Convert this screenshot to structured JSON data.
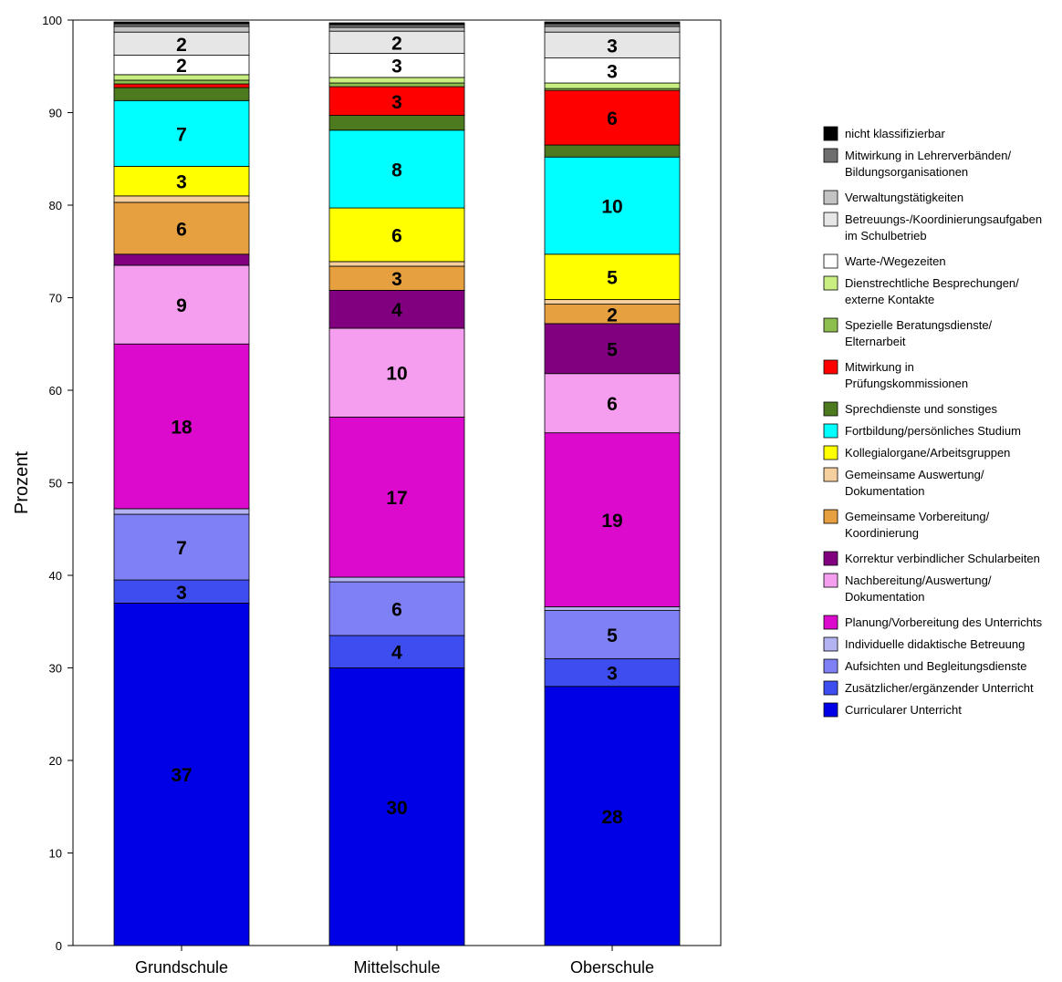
{
  "chart_data": {
    "type": "bar",
    "stacked": true,
    "title": "",
    "xlabel": "",
    "ylabel": "Prozent",
    "ylim": [
      0,
      100
    ],
    "yticks": [
      0,
      10,
      20,
      30,
      40,
      50,
      60,
      70,
      80,
      90,
      100
    ],
    "grid": false,
    "legend_position": "right",
    "categories": [
      "Grundschule",
      "Mittelschule",
      "Oberschule"
    ],
    "series": [
      {
        "name": "Curricularer Unterricht",
        "color": "#0000e6",
        "values": [
          37.0,
          30.0,
          28.0
        ],
        "labels": [
          "37",
          "30",
          "28"
        ]
      },
      {
        "name": "Zusätzlicher/ergänzender Unterricht",
        "color": "#3d4df0",
        "values": [
          2.5,
          3.5,
          3.0
        ],
        "labels": [
          "3",
          "4",
          "3"
        ]
      },
      {
        "name": "Aufsichten und Begleitungsdienste",
        "color": "#8080f5",
        "values": [
          7.1,
          5.8,
          5.2
        ],
        "labels": [
          "7",
          "6",
          "5"
        ]
      },
      {
        "name": "Individuelle didaktische Betreuung",
        "color": "#b3b3f2",
        "values": [
          0.6,
          0.5,
          0.4
        ],
        "labels": [
          "",
          "",
          ""
        ]
      },
      {
        "name": "Planung/Vorbereitung des Unterrichts",
        "color": "#dc0acd",
        "values": [
          17.8,
          17.3,
          18.8
        ],
        "labels": [
          "18",
          "17",
          "19"
        ]
      },
      {
        "name": "Nachbereitung/Auswertung/ Dokumentation",
        "color": "#f59ef0",
        "values": [
          8.5,
          9.6,
          6.4
        ],
        "labels": [
          "9",
          "10",
          "6"
        ]
      },
      {
        "name": "Korrektur verbindlicher Schularbeiten",
        "color": "#800080",
        "values": [
          1.2,
          4.1,
          5.4
        ],
        "labels": [
          "",
          "4",
          "5"
        ]
      },
      {
        "name": "Gemeinsame Vorbereitung/ Koordinierung",
        "color": "#e6a040",
        "values": [
          5.6,
          2.6,
          2.1
        ],
        "labels": [
          "6",
          "3",
          "2"
        ]
      },
      {
        "name": "Gemeinsame Auswertung/ Dokumentation",
        "color": "#f5cf9e",
        "values": [
          0.7,
          0.5,
          0.5
        ],
        "labels": [
          "",
          "",
          ""
        ]
      },
      {
        "name": "Kollegialorgane/Arbeitsgruppen",
        "color": "#ffff00",
        "values": [
          3.2,
          5.8,
          4.9
        ],
        "labels": [
          "3",
          "6",
          "5"
        ]
      },
      {
        "name": "Fortbildung/persönliches Studium",
        "color": "#00ffff",
        "values": [
          7.1,
          8.4,
          10.5
        ],
        "labels": [
          "7",
          "8",
          "10"
        ]
      },
      {
        "name": "Sprechdienste und sonstiges",
        "color": "#4d7a1f",
        "values": [
          1.4,
          1.6,
          1.3
        ],
        "labels": [
          "",
          "",
          ""
        ]
      },
      {
        "name": "Mitwirkung in Prüfungskommissionen",
        "color": "#ff0000",
        "values": [
          0.4,
          3.1,
          5.9
        ],
        "labels": [
          "",
          "3",
          "6"
        ]
      },
      {
        "name": "Spezielle Beratungsdienste/ Elternarbeit",
        "color": "#8cbf4d",
        "values": [
          0.4,
          0.4,
          0.2
        ],
        "labels": [
          "",
          "",
          ""
        ]
      },
      {
        "name": "Dienstrechtliche Besprechungen/ externe Kontakte",
        "color": "#c8ef80",
        "values": [
          0.6,
          0.6,
          0.6
        ],
        "labels": [
          "",
          "",
          ""
        ]
      },
      {
        "name": "Warte-/Wegezeiten",
        "color": "#ffffff",
        "values": [
          2.1,
          2.6,
          2.7
        ],
        "labels": [
          "2",
          "3",
          "3"
        ]
      },
      {
        "name": "Betreuungs-/Koordinierungsaufgaben im Schulbetrieb",
        "color": "#e6e6e6",
        "values": [
          2.5,
          2.4,
          2.8
        ],
        "labels": [
          "2",
          "2",
          "3"
        ]
      },
      {
        "name": "Verwaltungstätigkeiten",
        "color": "#c3c3c3",
        "values": [
          0.6,
          0.4,
          0.6
        ],
        "labels": [
          "",
          "",
          ""
        ]
      },
      {
        "name": "Mitwirkung in Lehrerverbänden/ Bildungsorganisationen",
        "color": "#6e6e6e",
        "values": [
          0.3,
          0.3,
          0.3
        ],
        "labels": [
          "",
          "",
          ""
        ]
      },
      {
        "name": "nicht klassifizierbar",
        "color": "#000000",
        "values": [
          0.2,
          0.2,
          0.2
        ],
        "labels": [
          "",
          "",
          ""
        ]
      }
    ]
  }
}
